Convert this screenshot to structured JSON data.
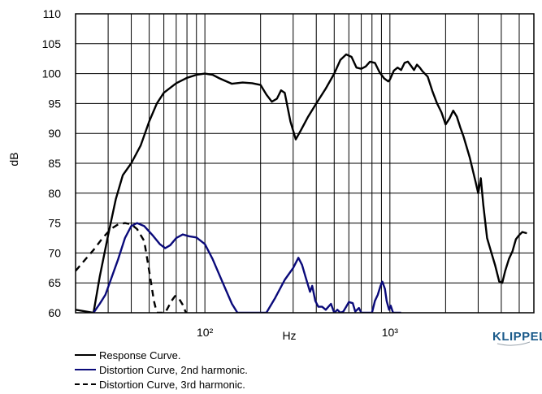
{
  "chart_data": {
    "type": "line",
    "title": "",
    "xlabel": "Hz",
    "ylabel": "dB",
    "xscale": "log",
    "xlim": [
      20,
      6000
    ],
    "ylim": [
      60,
      110
    ],
    "yticks": [
      "60",
      "65",
      "70",
      "75",
      "80",
      "85",
      "90",
      "95",
      "100",
      "105",
      "110"
    ],
    "xtick_labels": [
      {
        "x": 100,
        "label": "10²"
      },
      {
        "x": 1000,
        "label": "10³"
      }
    ],
    "grid": true,
    "legend_position": "bottom-left",
    "series": [
      {
        "name": "Response Curve.",
        "color": "#000000",
        "style": "solid",
        "points": [
          [
            20,
            60.5
          ],
          [
            25,
            60
          ],
          [
            27,
            66
          ],
          [
            30,
            73
          ],
          [
            33,
            79
          ],
          [
            36,
            83
          ],
          [
            40,
            85
          ],
          [
            45,
            88
          ],
          [
            50,
            92
          ],
          [
            55,
            95
          ],
          [
            60,
            96.8
          ],
          [
            70,
            98.4
          ],
          [
            80,
            99.3
          ],
          [
            90,
            99.8
          ],
          [
            100,
            100
          ],
          [
            110,
            99.8
          ],
          [
            120,
            99.2
          ],
          [
            140,
            98.3
          ],
          [
            160,
            98.5
          ],
          [
            180,
            98.4
          ],
          [
            200,
            98.1
          ],
          [
            215,
            96.5
          ],
          [
            230,
            95.3
          ],
          [
            245,
            95.8
          ],
          [
            258,
            97.2
          ],
          [
            270,
            96.8
          ],
          [
            290,
            92
          ],
          [
            310,
            89
          ],
          [
            330,
            90.5
          ],
          [
            360,
            92.7
          ],
          [
            400,
            95
          ],
          [
            450,
            97.5
          ],
          [
            500,
            100
          ],
          [
            540,
            102.3
          ],
          [
            580,
            103.2
          ],
          [
            620,
            102.8
          ],
          [
            660,
            101
          ],
          [
            700,
            100.8
          ],
          [
            740,
            101.2
          ],
          [
            780,
            102
          ],
          [
            830,
            101.8
          ],
          [
            880,
            100.2
          ],
          [
            930,
            99.2
          ],
          [
            980,
            98.7
          ],
          [
            1000,
            99
          ],
          [
            1050,
            100.5
          ],
          [
            1100,
            101
          ],
          [
            1150,
            100.6
          ],
          [
            1200,
            101.8
          ],
          [
            1250,
            102
          ],
          [
            1300,
            101.3
          ],
          [
            1350,
            100.6
          ],
          [
            1400,
            101.5
          ],
          [
            1450,
            101
          ],
          [
            1500,
            100.4
          ],
          [
            1600,
            99.5
          ],
          [
            1700,
            97
          ],
          [
            1800,
            95
          ],
          [
            1900,
            93.5
          ],
          [
            2000,
            91.5
          ],
          [
            2100,
            92.5
          ],
          [
            2200,
            93.8
          ],
          [
            2300,
            92.8
          ],
          [
            2400,
            91
          ],
          [
            2500,
            89.5
          ],
          [
            2700,
            86
          ],
          [
            2900,
            82
          ],
          [
            3000,
            80
          ],
          [
            3100,
            82.5
          ],
          [
            3200,
            78
          ],
          [
            3350,
            72.5
          ],
          [
            3500,
            70.5
          ],
          [
            3700,
            68
          ],
          [
            3900,
            65.2
          ],
          [
            4050,
            65
          ],
          [
            4200,
            67
          ],
          [
            4400,
            69
          ],
          [
            4600,
            70.3
          ],
          [
            4800,
            72.3
          ],
          [
            5000,
            73
          ],
          [
            5200,
            73.5
          ],
          [
            5500,
            73.3
          ]
        ]
      },
      {
        "name": "Distortion Curve, 2nd harmonic.",
        "color": "#0a0a7a",
        "style": "solid",
        "points": [
          [
            25,
            60
          ],
          [
            27,
            61.5
          ],
          [
            29,
            63
          ],
          [
            31,
            65.5
          ],
          [
            34,
            69
          ],
          [
            37,
            72.5
          ],
          [
            40,
            74.5
          ],
          [
            43,
            75
          ],
          [
            47,
            74.5
          ],
          [
            52,
            73
          ],
          [
            57,
            71.5
          ],
          [
            61,
            70.8
          ],
          [
            65,
            71.3
          ],
          [
            70,
            72.5
          ],
          [
            76,
            73.1
          ],
          [
            82,
            72.8
          ],
          [
            90,
            72.6
          ],
          [
            100,
            71.5
          ],
          [
            110,
            69
          ],
          [
            125,
            65
          ],
          [
            140,
            61.5
          ],
          [
            150,
            60
          ],
          [
            215,
            60
          ],
          [
            240,
            62.5
          ],
          [
            270,
            65.5
          ],
          [
            300,
            67.5
          ],
          [
            320,
            69.2
          ],
          [
            335,
            68
          ],
          [
            350,
            66
          ],
          [
            370,
            63.5
          ],
          [
            380,
            64.5
          ],
          [
            395,
            62
          ],
          [
            410,
            61
          ],
          [
            430,
            61
          ],
          [
            450,
            60.5
          ],
          [
            480,
            61.5
          ],
          [
            500,
            60
          ],
          [
            520,
            60.5
          ],
          [
            540,
            60
          ],
          [
            560,
            60.2
          ],
          [
            580,
            61
          ],
          [
            600,
            61.8
          ],
          [
            630,
            61.6
          ],
          [
            650,
            60.2
          ],
          [
            680,
            60.8
          ],
          [
            700,
            60
          ],
          [
            800,
            60
          ],
          [
            830,
            62
          ],
          [
            860,
            63
          ],
          [
            890,
            64.5
          ],
          [
            910,
            65.2
          ],
          [
            940,
            64
          ],
          [
            960,
            62
          ],
          [
            990,
            60.5
          ],
          [
            1010,
            61.2
          ],
          [
            1040,
            60
          ],
          [
            1100,
            60
          ],
          [
            1150,
            60
          ]
        ]
      },
      {
        "name": "Distortion Curve, 3rd harmonic.",
        "color": "#000000",
        "style": "dashed",
        "points": [
          [
            20,
            67
          ],
          [
            22,
            68.5
          ],
          [
            25,
            70.5
          ],
          [
            28,
            72.5
          ],
          [
            31,
            74
          ],
          [
            34,
            74.8
          ],
          [
            37,
            75
          ],
          [
            40,
            74.8
          ],
          [
            43,
            74
          ],
          [
            47,
            72
          ],
          [
            50,
            67
          ],
          [
            53,
            62
          ],
          [
            55,
            60
          ],
          [
            61,
            60
          ],
          [
            63,
            60.8
          ],
          [
            66,
            62
          ],
          [
            69,
            62.8
          ],
          [
            72,
            62.5
          ],
          [
            76,
            61.3
          ],
          [
            79,
            60
          ]
        ]
      }
    ]
  },
  "legend": {
    "items": [
      {
        "label": "Response Curve.",
        "color": "#000000",
        "style": "solid"
      },
      {
        "label": "Distortion Curve, 2nd harmonic.",
        "color": "#0a0a7a",
        "style": "solid"
      },
      {
        "label": "Distortion Curve, 3rd harmonic.",
        "color": "#000000",
        "style": "dashed"
      }
    ]
  },
  "logo_text": "KLIPPEL"
}
